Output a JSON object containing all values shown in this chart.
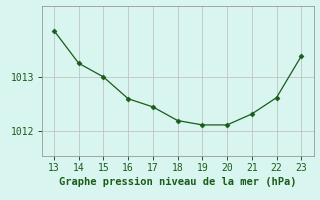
{
  "x": [
    13,
    14,
    15,
    16,
    17,
    18,
    19,
    20,
    21,
    22,
    23
  ],
  "y": [
    1013.85,
    1013.25,
    1013.0,
    1012.6,
    1012.45,
    1012.2,
    1012.12,
    1012.12,
    1012.32,
    1012.62,
    1013.38
  ],
  "line_color": "#1a5c1a",
  "marker": "D",
  "marker_size": 2.5,
  "bg_color": "#d9f5f0",
  "grid_color": "#bbbbbb",
  "xlabel": "Graphe pression niveau de la mer (hPa)",
  "xlabel_color": "#1a5c1a",
  "tick_color": "#1a5c1a",
  "spine_color": "#999999",
  "ylim": [
    1011.55,
    1014.3
  ],
  "xlim": [
    12.5,
    23.5
  ],
  "yticks": [
    1012,
    1013
  ],
  "xticks": [
    13,
    14,
    15,
    16,
    17,
    18,
    19,
    20,
    21,
    22,
    23
  ],
  "tick_fontsize": 7,
  "xlabel_fontsize": 7.5
}
